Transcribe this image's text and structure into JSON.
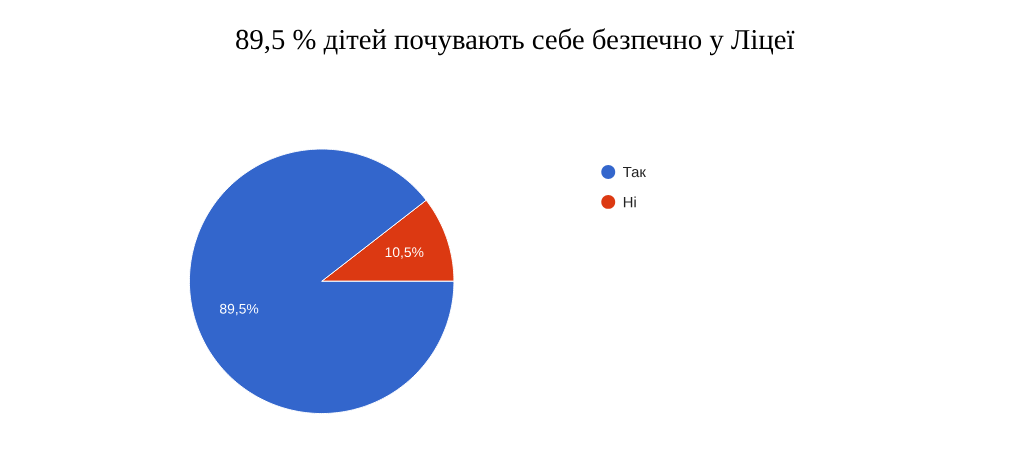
{
  "chart_data": {
    "type": "pie",
    "title": "89,5 % дітей почувають себе безпечно у Ліцеї",
    "categories": [
      "Так",
      "Ні"
    ],
    "values": [
      89.5,
      10.5
    ],
    "colors": [
      "#3366cc",
      "#dc3912"
    ],
    "value_labels": [
      "89,5%",
      "10,5%"
    ],
    "legend": "right"
  }
}
